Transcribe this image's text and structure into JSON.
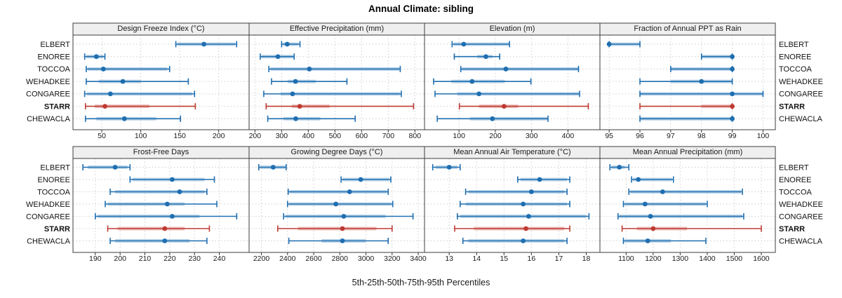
{
  "title": "Annual Climate: sibling",
  "caption": "5th-25th-50th-75th-95th Percentiles",
  "sites": [
    "ELBERT",
    "ENOREE",
    "TOCCOA",
    "WEHADKEE",
    "CONGAREE",
    "STARR",
    "CHEWACLA"
  ],
  "highlight_site": "STARR",
  "percentiles_shown": [
    "5th",
    "25th",
    "50th",
    "75th",
    "95th"
  ],
  "colors": {
    "series_blue": "#1f6eb0",
    "series_blue_band": "#aecde5",
    "highlight_red": "#bf3a32",
    "highlight_red_band": "#e8b3ae",
    "grid": "#cfcfcf",
    "strip_bg": "#efefef",
    "panel_border": "#3c3c3c",
    "tick_text": "#1a1a1a"
  },
  "chart_data": [
    {
      "type": "interval",
      "panel": "design-freeze-index",
      "title": "Design Freeze Index (°C)",
      "row": 0,
      "col": 0,
      "xlim": [
        13,
        239
      ],
      "ticks": [
        50,
        100,
        150,
        200
      ],
      "values": {
        "ELBERT": [
          145,
          147,
          181,
          221,
          223
        ],
        "ENOREE": [
          28,
          30,
          43,
          52,
          54
        ],
        "TOCCOA": [
          30,
          32,
          52,
          134,
          137
        ],
        "WEHADKEE": [
          30,
          46,
          77,
          100,
          161
        ],
        "CONGAREE": [
          28,
          31,
          61,
          166,
          169
        ],
        "STARR": [
          29,
          41,
          54,
          111,
          170
        ],
        "CHEWACLA": [
          29,
          43,
          79,
          120,
          151
        ]
      }
    },
    {
      "type": "interval",
      "panel": "effective-precipitation",
      "title": "Effective Precipitation (mm)",
      "row": 0,
      "col": 1,
      "xlim": [
        178,
        836
      ],
      "ticks": [
        200,
        300,
        400,
        500,
        600,
        700,
        800
      ],
      "values": {
        "ELBERT": [
          300,
          305,
          321,
          364,
          369
        ],
        "ENOREE": [
          220,
          225,
          286,
          344,
          347
        ],
        "TOCCOA": [
          252,
          258,
          404,
          742,
          745
        ],
        "WEHADKEE": [
          262,
          323,
          352,
          428,
          545
        ],
        "CONGAREE": [
          233,
          296,
          341,
          745,
          749
        ],
        "STARR": [
          242,
          338,
          368,
          480,
          795
        ],
        "CHEWACLA": [
          248,
          307,
          353,
          445,
          576
        ]
      }
    },
    {
      "type": "interval",
      "panel": "elevation",
      "title": "Elevation (m)",
      "row": 0,
      "col": 2,
      "xlim": [
        5,
        488
      ],
      "ticks": [
        100,
        200,
        300,
        400
      ],
      "values": {
        "ELBERT": [
          81,
          85,
          113,
          237,
          239
        ],
        "ENOREE": [
          87,
          150,
          174,
          192,
          212
        ],
        "TOCCOA": [
          105,
          108,
          229,
          427,
          429
        ],
        "WEHADKEE": [
          30,
          79,
          136,
          226,
          298
        ],
        "CONGAREE": [
          34,
          95,
          155,
          430,
          432
        ],
        "STARR": [
          101,
          155,
          224,
          263,
          456
        ],
        "CHEWACLA": [
          40,
          130,
          192,
          343,
          345
        ]
      }
    },
    {
      "type": "interval",
      "panel": "fraction-ppt-as-rain",
      "title": "Fraction of Annual PPT as Rain",
      "row": 0,
      "col": 3,
      "xlim": [
        94.7,
        100.4
      ],
      "ticks": [
        95,
        96,
        97,
        98,
        99,
        100
      ],
      "values": {
        "ELBERT": [
          95,
          95,
          95,
          96,
          96
        ],
        "ENOREE": [
          98,
          98,
          99,
          99,
          99
        ],
        "TOCCOA": [
          97,
          97,
          99,
          99,
          99
        ],
        "WEHADKEE": [
          96,
          97,
          98,
          99,
          99
        ],
        "CONGAREE": [
          96,
          96,
          99,
          100,
          100
        ],
        "STARR": [
          96,
          98,
          99,
          99,
          99
        ],
        "CHEWACLA": [
          96,
          96,
          99,
          99,
          99
        ]
      }
    },
    {
      "type": "interval",
      "panel": "frost-free-days",
      "title": "Frost-Free Days",
      "row": 1,
      "col": 0,
      "xlim": [
        181,
        252
      ],
      "ticks": [
        190,
        200,
        210,
        220,
        230,
        240
      ],
      "values": {
        "ELBERT": [
          185,
          187,
          198,
          203,
          204
        ],
        "ENOREE": [
          204,
          205,
          221,
          234,
          238
        ],
        "TOCCOA": [
          196,
          198,
          224,
          234,
          235
        ],
        "WEHADKEE": [
          194,
          195,
          219,
          226,
          239
        ],
        "CONGAREE": [
          190,
          191,
          221,
          232,
          247
        ],
        "STARR": [
          195,
          199,
          218,
          226,
          236
        ],
        "CHEWACLA": [
          196,
          198,
          218,
          228,
          235
        ]
      }
    },
    {
      "type": "interval",
      "panel": "growing-degree-days",
      "title": "Growing Degree Days (°C)",
      "row": 1,
      "col": 1,
      "xlim": [
        2106,
        3448
      ],
      "ticks": [
        2200,
        2400,
        2600,
        2800,
        3000,
        3200,
        3400
      ],
      "values": {
        "ELBERT": [
          2180,
          2190,
          2290,
          2385,
          2390
        ],
        "ENOREE": [
          2810,
          2820,
          2960,
          3180,
          3190
        ],
        "TOCCOA": [
          2405,
          2415,
          2875,
          3160,
          3170
        ],
        "WEHADKEE": [
          2400,
          2410,
          2770,
          3195,
          3205
        ],
        "CONGAREE": [
          2370,
          2385,
          2830,
          3150,
          3360
        ],
        "STARR": [
          2325,
          2480,
          2820,
          3080,
          3200
        ],
        "CHEWACLA": [
          2410,
          2660,
          2820,
          3000,
          3170
        ]
      }
    },
    {
      "type": "interval",
      "panel": "mean-annual-air-temperature",
      "title": "Mean Annual Air Temperature (°C)",
      "row": 1,
      "col": 2,
      "xlim": [
        12.1,
        18.5
      ],
      "ticks": [
        13,
        14,
        15,
        16,
        17,
        18
      ],
      "values": {
        "ELBERT": [
          12.4,
          12.5,
          13.0,
          13.3,
          13.4
        ],
        "ENOREE": [
          15.5,
          15.6,
          16.3,
          17.3,
          17.4
        ],
        "TOCCOA": [
          13.6,
          13.7,
          16.0,
          17.2,
          17.3
        ],
        "WEHADKEE": [
          13.4,
          13.6,
          15.7,
          17.3,
          17.4
        ],
        "CONGAREE": [
          13.3,
          13.4,
          15.9,
          18.0,
          18.1
        ],
        "STARR": [
          13.2,
          13.9,
          15.8,
          17.2,
          17.4
        ],
        "CHEWACLA": [
          13.5,
          13.7,
          15.7,
          17.2,
          17.3
        ]
      }
    },
    {
      "type": "interval",
      "panel": "mean-annual-precipitation",
      "title": "Mean Annual Precipitation (mm)",
      "row": 1,
      "col": 3,
      "xlim": [
        1003,
        1652
      ],
      "ticks": [
        1100,
        1200,
        1300,
        1400,
        1500,
        1600
      ],
      "values": {
        "ELBERT": [
          1040,
          1045,
          1075,
          1095,
          1110
        ],
        "ENOREE": [
          1120,
          1125,
          1145,
          1270,
          1275
        ],
        "TOCCOA": [
          1110,
          1115,
          1235,
          1525,
          1530
        ],
        "WEHADKEE": [
          1090,
          1095,
          1170,
          1395,
          1400
        ],
        "CONGAREE": [
          1070,
          1075,
          1190,
          1530,
          1535
        ],
        "STARR": [
          1085,
          1140,
          1200,
          1325,
          1600
        ],
        "CHEWACLA": [
          1090,
          1095,
          1180,
          1265,
          1395
        ]
      }
    }
  ]
}
